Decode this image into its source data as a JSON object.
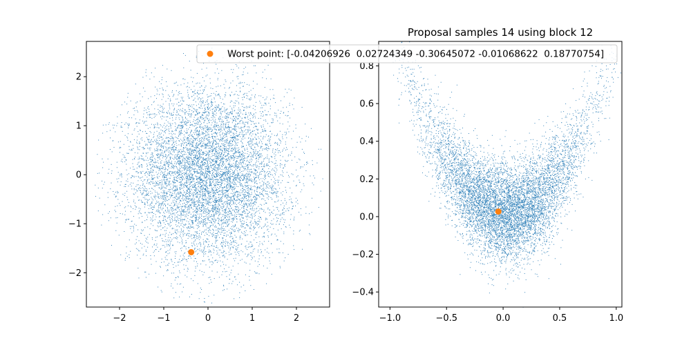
{
  "chart_data": [
    {
      "type": "scatter",
      "title": "",
      "xlabel": "",
      "ylabel": "",
      "xlim": [
        -2.75,
        2.75
      ],
      "ylim": [
        -2.7,
        2.72
      ],
      "xticks": [
        -2,
        -1,
        0,
        1,
        2
      ],
      "yticks": [
        -2,
        -1,
        0,
        1,
        2
      ],
      "xtick_labels": [
        "−2",
        "−1",
        "0",
        "1",
        "2"
      ],
      "ytick_labels": [
        "−2",
        "−1",
        "0",
        "1",
        "2"
      ],
      "grid": false,
      "series": [
        {
          "kind": "samples",
          "distribution": "isotropic gaussian, ~8000 points",
          "center": [
            0.0,
            0.0
          ],
          "spread": 0.9,
          "count": 8000,
          "color": "#1f77b4"
        },
        {
          "kind": "highlight",
          "color": "#ff7f0e",
          "points": [
            {
              "x": -0.38,
              "y": -1.58
            }
          ]
        }
      ]
    },
    {
      "type": "scatter",
      "title": "Proposal samples 14 using block 12",
      "xlabel": "",
      "ylabel": "",
      "xlim": [
        -1.1,
        1.05
      ],
      "ylim": [
        -0.48,
        0.93
      ],
      "xticks": [
        -1.0,
        -0.5,
        0.0,
        0.5,
        1.0
      ],
      "yticks": [
        -0.4,
        -0.2,
        0.0,
        0.2,
        0.4,
        0.6,
        0.8
      ],
      "xtick_labels": [
        "−1.0",
        "−0.5",
        "0.0",
        "0.5",
        "1.0"
      ],
      "ytick_labels": [
        "−0.4",
        "−0.2",
        "0.0",
        "0.2",
        "0.4",
        "0.6",
        "0.8"
      ],
      "grid": false,
      "series": [
        {
          "kind": "samples",
          "distribution": "banana (parabolic) distribution, ~8000 points",
          "count": 8000,
          "color": "#1f77b4"
        },
        {
          "kind": "highlight",
          "name": "Worst point: [-0.04206926  0.02724349 -0.30645072 -0.01068622  0.18770754]",
          "color": "#ff7f0e",
          "points": [
            {
              "x": -0.042,
              "y": 0.027
            }
          ]
        }
      ],
      "legend": {
        "placement": "upper",
        "entries": [
          "Worst point: [-0.04206926  0.02724349 -0.30645072 -0.01068622  0.18770754]"
        ]
      }
    }
  ]
}
